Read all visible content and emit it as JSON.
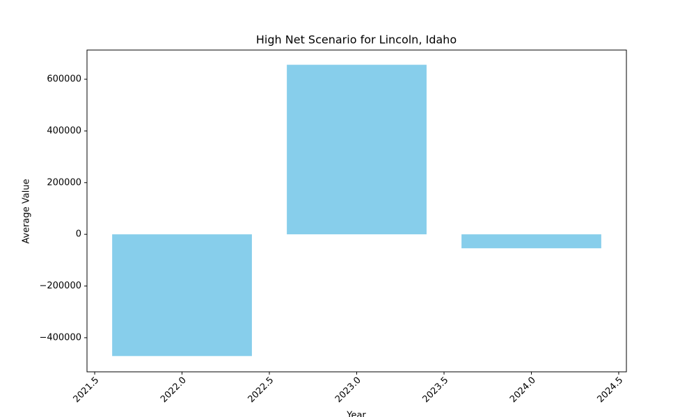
{
  "chart_data": {
    "type": "bar",
    "title": "High Net Scenario for Lincoln, Idaho",
    "xlabel": "Year",
    "ylabel": "Average Value",
    "x": [
      2022,
      2023,
      2024
    ],
    "values": [
      -471000,
      656000,
      -54000
    ],
    "bar_width": 0.8,
    "color": "#87ceeb",
    "xlim": [
      2021.456,
      2024.544
    ],
    "xticks": [
      2021.5,
      {
        "value": 2022,
        "label": "2022.0"
      },
      2022.5,
      {
        "value": 2023,
        "label": "2023.0"
      },
      2023.5,
      {
        "value": 2024,
        "label": "2024.0"
      },
      2024.5
    ],
    "ylim": [
      -532000,
      713000
    ],
    "yticks": [
      {
        "value": -400000,
        "label": "−400000"
      },
      {
        "value": -200000,
        "label": "−200000"
      },
      0,
      200000,
      400000,
      600000
    ],
    "grid": false
  }
}
